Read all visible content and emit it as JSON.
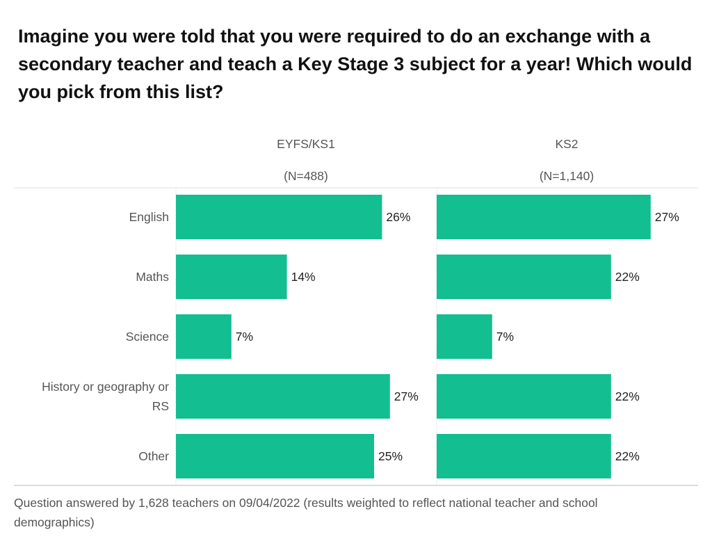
{
  "title": "Imagine you were told that you were required to do an exchange with a secondary teacher and teach a Key Stage 3 subject for a year! Which would you pick from this list?",
  "footnote": "Question answered by 1,628 teachers on 09/04/2022 (results weighted to reflect national teacher and school demographics)",
  "colors": {
    "bar": "#13be91",
    "gridline": "#dddddd",
    "text": "#222222",
    "muted": "#555555"
  },
  "chart_data": {
    "type": "bar",
    "orientation": "horizontal",
    "categories": [
      "English",
      "Maths",
      "Science",
      "History or geography or RS",
      "Other"
    ],
    "category_lines": [
      [
        "English"
      ],
      [
        "Maths"
      ],
      [
        "Science"
      ],
      [
        "History or geography or",
        "RS"
      ],
      [
        "Other"
      ]
    ],
    "series": [
      {
        "name": "EYFS/KS1",
        "sample": "(N=488)",
        "values": [
          26,
          14,
          7,
          27,
          25
        ],
        "labels": [
          "26%",
          "14%",
          "7%",
          "27%",
          "25%"
        ]
      },
      {
        "name": "KS2",
        "sample": "(N=1,140)",
        "values": [
          27,
          22,
          7,
          22,
          22
        ],
        "labels": [
          "27%",
          "22%",
          "7%",
          "22%",
          "22%"
        ]
      }
    ],
    "value_unit": "%",
    "xlim": [
      0,
      30
    ],
    "title": "",
    "xlabel": "",
    "ylabel": "",
    "grid": false,
    "legend": "panel headers"
  }
}
